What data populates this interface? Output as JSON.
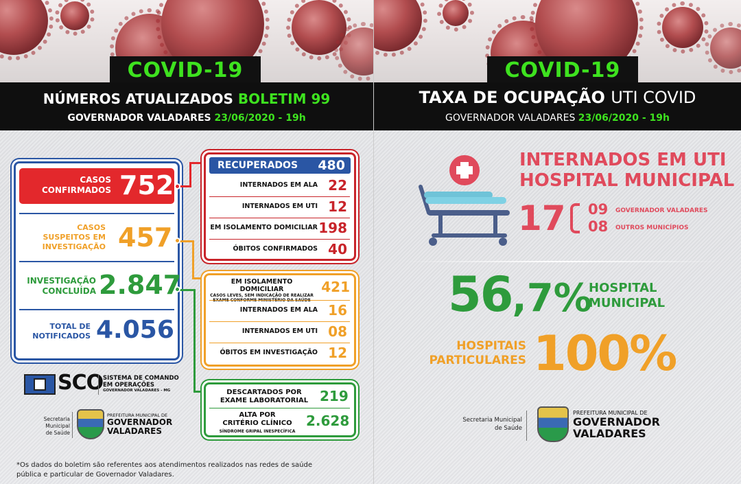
{
  "left": {
    "badge": "COVID-19",
    "title_prefix": "NÚMEROS ATUALIZADOS",
    "title_highlight": "BOLETIM 99",
    "location": "GOVERNADOR VALADARES",
    "datetime": "23/06/2020 - 19h",
    "confirmed_label_1": "CASOS",
    "confirmed_label_2": "CONFIRMADOS",
    "confirmed_value": "752",
    "suspected_label_1": "CASOS",
    "suspected_label_2": "SUSPEITOS EM",
    "suspected_label_3": "INVESTIGAÇÃO",
    "suspected_value": "457",
    "concluded_label_1": "INVESTIGAÇÃO",
    "concluded_label_2": "CONCLUÍDA",
    "concluded_value": "2.847",
    "notified_label_1": "TOTAL DE",
    "notified_label_2": "NOTIFICADOS",
    "notified_value": "4.056",
    "recovered_label": "RECUPERADOS",
    "recovered_value": "480",
    "red_rows": [
      {
        "label": "INTERNADOS EM ALA",
        "value": "22"
      },
      {
        "label": "INTERNADOS EM UTI",
        "value": "12"
      },
      {
        "label": "EM ISOLAMENTO DOMICILIAR",
        "value": "198"
      },
      {
        "label": "ÓBITOS CONFIRMADOS",
        "value": "40"
      }
    ],
    "orange_isolation_label": "EM ISOLAMENTO DOMICILIAR",
    "orange_isolation_note_1": "CASOS LEVES, SEM INDICAÇÃO DE REALIZAR",
    "orange_isolation_note_2": "EXAME CONFORME MINISTÉRIO DA SAÚDE",
    "orange_isolation_value": "421",
    "orange_rows": [
      {
        "label": "INTERNADOS EM ALA",
        "value": "16"
      },
      {
        "label": "INTERNADOS EM UTI",
        "value": "08"
      },
      {
        "label": "ÓBITOS EM INVESTIGAÇÃO",
        "value": "12"
      }
    ],
    "discarded_label_1": "DESCARTADOS POR",
    "discarded_label_2": "EXAME LABORATORIAL",
    "discarded_value": "219",
    "discharge_label_1": "ALTA POR",
    "discharge_label_2": "CRITÉRIO CLÍNICO",
    "discharge_note": "SÍNDROME GRIPAL INESPECÍFICA",
    "discharge_value": "2.628",
    "sco_name": "SCO",
    "sco_line_1": "SISTEMA DE COMANDO",
    "sco_line_2": "EM OPERAÇÕES",
    "sco_line_3": "GOVERNADOR VALADARES - MG",
    "footer_note_1": "*Os dados do boletim são referentes aos atendimentos realizados nas redes de saúde",
    "footer_note_2": "pública e particular de Governador Valadares."
  },
  "right": {
    "badge": "COVID-19",
    "title_bold": "TAXA DE OCUPAÇÃO",
    "title_light": "UTI COVID",
    "location": "GOVERNADOR VALADARES",
    "datetime": "23/06/2020 - 19h",
    "icu_title_1": "INTERNADOS EM UTI",
    "icu_title_2": "HOSPITAL MUNICIPAL",
    "icu_total": "17",
    "icu_gv_value": "09",
    "icu_gv_label": "GOVERNADOR VALADARES",
    "icu_other_value": "08",
    "icu_other_label": "OUTROS MUNICÍPIOS",
    "municipal_rate_int": "56",
    "municipal_rate_dec": ",7%",
    "municipal_label_1": "HOSPITAL",
    "municipal_label_2": "MUNICIPAL",
    "private_label_1": "HOSPITAIS",
    "private_label_2": "PARTICULARES",
    "private_rate": "100%"
  },
  "footer_logo": {
    "secretaria_1": "Secretaria Municipal",
    "secretaria_2": "de Saúde",
    "prefeitura": "PREFEITURA MUNICIPAL DE",
    "city_1": "GOVERNADOR",
    "city_2": "VALADARES"
  },
  "colors": {
    "neon_green": "#3ee21f",
    "red": "#e3282c",
    "blue": "#2a56a4",
    "orange": "#f0a028",
    "green": "#2e9b3c",
    "pink": "#e04a5c"
  }
}
